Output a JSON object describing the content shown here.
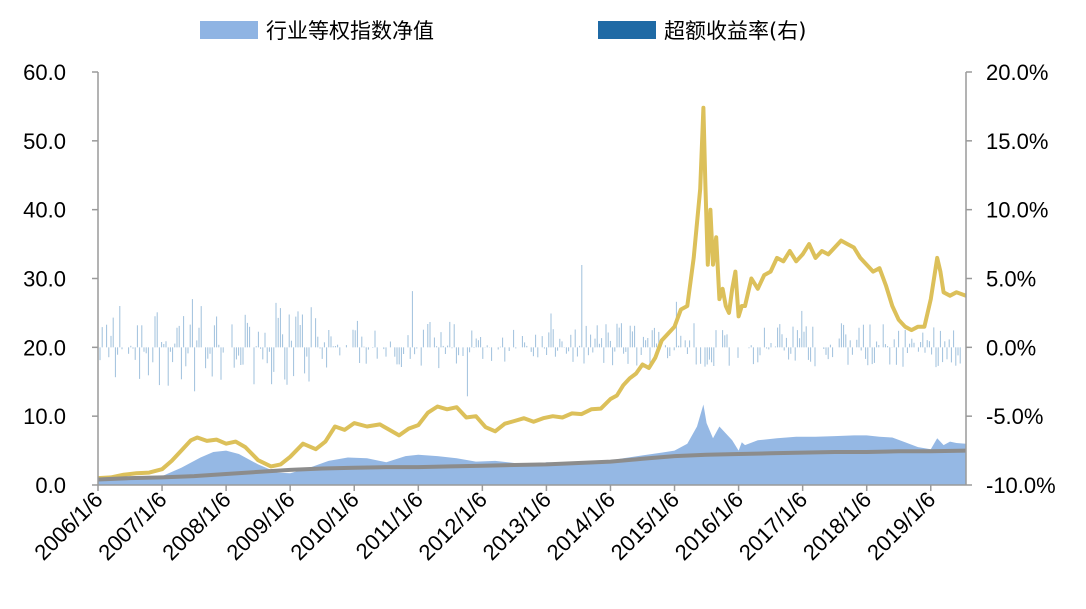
{
  "chart_data": {
    "type": "area",
    "legend": [
      {
        "label": "行业等权指数净值",
        "color": "#8fb4e3",
        "kind": "area"
      },
      {
        "label": "超额收益率(右)",
        "color": "#1f6aa5",
        "kind": "bar"
      }
    ],
    "legend_position": "top",
    "left_axis": {
      "min": 0,
      "max": 60,
      "step": 10,
      "tick_labels": [
        "0.0",
        "10.0",
        "20.0",
        "30.0",
        "40.0",
        "50.0",
        "60.0"
      ]
    },
    "right_axis": {
      "min": -10,
      "max": 20,
      "step": 5,
      "tick_labels": [
        "-10.0%",
        "-5.0%",
        "0.0%",
        "5.0%",
        "10.0%",
        "15.0%",
        "20.0%"
      ]
    },
    "x_tick_labels": [
      "2006/1/6",
      "2007/1/6",
      "2008/1/6",
      "2009/1/6",
      "2010/1/6",
      "2011/1/6",
      "2012/1/6",
      "2013/1/6",
      "2014/1/6",
      "2015/1/6",
      "2016/1/6",
      "2017/1/6",
      "2018/1/6",
      "2019/1/6"
    ],
    "x_range": [
      2006.0,
      2019.55
    ],
    "series": [
      {
        "kind": "area",
        "axis": "left",
        "color": "#8fb4e3",
        "x": [
          2006.0,
          2006.5,
          2007.0,
          2007.3,
          2007.6,
          2007.8,
          2008.0,
          2008.2,
          2008.5,
          2008.8,
          2009.0,
          2009.3,
          2009.6,
          2009.9,
          2010.2,
          2010.5,
          2010.8,
          2011.0,
          2011.3,
          2011.6,
          2011.9,
          2012.2,
          2012.5,
          2012.8,
          2013.0,
          2013.3,
          2013.6,
          2013.9,
          2014.2,
          2014.5,
          2014.8,
          2015.0,
          2015.2,
          2015.35,
          2015.45,
          2015.5,
          2015.6,
          2015.7,
          2015.8,
          2015.9,
          2016.0,
          2016.05,
          2016.1,
          2016.3,
          2016.6,
          2016.9,
          2017.2,
          2017.5,
          2017.8,
          2018.0,
          2018.2,
          2018.4,
          2018.6,
          2018.8,
          2019.0,
          2019.1,
          2019.2,
          2019.3,
          2019.4,
          2019.55
        ],
        "values": [
          0.8,
          1.0,
          1.3,
          2.5,
          4.0,
          4.8,
          5.0,
          4.5,
          3.0,
          1.8,
          1.7,
          2.5,
          3.5,
          4.0,
          3.9,
          3.3,
          4.2,
          4.4,
          4.2,
          3.9,
          3.4,
          3.5,
          3.2,
          3.0,
          3.3,
          3.2,
          3.4,
          3.4,
          3.9,
          4.3,
          4.7,
          5.0,
          6.0,
          8.5,
          11.7,
          9.0,
          6.8,
          8.5,
          7.5,
          6.5,
          5.0,
          6.2,
          5.8,
          6.5,
          6.8,
          7.0,
          7.0,
          7.1,
          7.2,
          7.2,
          7.0,
          6.9,
          6.2,
          5.5,
          5.2,
          6.8,
          5.8,
          6.3,
          6.1,
          6.0
        ]
      },
      {
        "kind": "line",
        "axis": "left",
        "color": "#dcc05a",
        "x": [
          2006.0,
          2006.2,
          2006.4,
          2006.6,
          2006.8,
          2007.0,
          2007.15,
          2007.3,
          2007.45,
          2007.55,
          2007.7,
          2007.85,
          2008.0,
          2008.15,
          2008.3,
          2008.5,
          2008.7,
          2008.85,
          2009.0,
          2009.2,
          2009.4,
          2009.55,
          2009.7,
          2009.85,
          2010.0,
          2010.2,
          2010.4,
          2010.55,
          2010.7,
          2010.85,
          2011.0,
          2011.15,
          2011.3,
          2011.45,
          2011.6,
          2011.75,
          2011.9,
          2012.05,
          2012.2,
          2012.35,
          2012.5,
          2012.65,
          2012.8,
          2012.95,
          2013.1,
          2013.25,
          2013.4,
          2013.55,
          2013.7,
          2013.85,
          2014.0,
          2014.1,
          2014.2,
          2014.3,
          2014.4,
          2014.5,
          2014.6,
          2014.7,
          2014.8,
          2014.9,
          2015.0,
          2015.1,
          2015.2,
          2015.3,
          2015.4,
          2015.45,
          2015.48,
          2015.52,
          2015.56,
          2015.6,
          2015.65,
          2015.7,
          2015.75,
          2015.8,
          2015.85,
          2015.9,
          2015.95,
          2016.0,
          2016.05,
          2016.1,
          2016.2,
          2016.3,
          2016.4,
          2016.5,
          2016.6,
          2016.7,
          2016.8,
          2016.9,
          2017.0,
          2017.1,
          2017.2,
          2017.3,
          2017.4,
          2017.5,
          2017.6,
          2017.7,
          2017.8,
          2017.9,
          2018.0,
          2018.1,
          2018.2,
          2018.3,
          2018.4,
          2018.5,
          2018.6,
          2018.7,
          2018.8,
          2018.9,
          2019.0,
          2019.1,
          2019.15,
          2019.2,
          2019.3,
          2019.4,
          2019.55
        ],
        "values": [
          1.0,
          1.1,
          1.5,
          1.7,
          1.8,
          2.3,
          3.5,
          5.0,
          6.5,
          6.9,
          6.4,
          6.6,
          6.0,
          6.3,
          5.5,
          3.6,
          2.7,
          3.0,
          4.1,
          6.0,
          5.2,
          6.3,
          8.5,
          8.0,
          9.0,
          8.5,
          8.8,
          8.0,
          7.2,
          8.2,
          8.7,
          10.5,
          11.4,
          11.0,
          11.3,
          9.8,
          10.0,
          8.4,
          7.8,
          8.9,
          9.3,
          9.7,
          9.2,
          9.7,
          10.0,
          9.8,
          10.4,
          10.3,
          11.0,
          11.1,
          12.5,
          13.0,
          14.5,
          15.5,
          16.2,
          17.5,
          17.0,
          18.5,
          21.0,
          22.0,
          23.0,
          25.5,
          26.0,
          33.0,
          43.0,
          54.8,
          44.0,
          32.0,
          40.0,
          32.0,
          36.0,
          27.0,
          28.5,
          26.0,
          25.0,
          28.5,
          31.0,
          24.5,
          26.0,
          26.0,
          30.0,
          28.5,
          30.5,
          31.0,
          33.0,
          32.5,
          34.0,
          32.5,
          33.5,
          35.0,
          33.0,
          34.0,
          33.5,
          34.5,
          35.5,
          35.0,
          34.5,
          33.0,
          32.0,
          31.0,
          31.5,
          29.0,
          26.0,
          24.0,
          23.0,
          22.5,
          23.0,
          23.0,
          27.0,
          33.0,
          31.0,
          28.0,
          27.5,
          28.0,
          27.5
        ]
      },
      {
        "kind": "line",
        "axis": "left",
        "color": "#8c8c8c",
        "x": [
          2006.0,
          2006.5,
          2007.0,
          2007.5,
          2008.0,
          2008.5,
          2009.0,
          2009.5,
          2010.0,
          2010.5,
          2011.0,
          2011.5,
          2012.0,
          2012.5,
          2013.0,
          2013.5,
          2014.0,
          2014.5,
          2015.0,
          2015.5,
          2016.0,
          2016.5,
          2017.0,
          2017.5,
          2018.0,
          2018.5,
          2019.0,
          2019.55
        ],
        "values": [
          0.8,
          1.0,
          1.1,
          1.3,
          1.6,
          1.9,
          2.2,
          2.4,
          2.5,
          2.6,
          2.6,
          2.7,
          2.8,
          2.9,
          3.0,
          3.2,
          3.4,
          3.8,
          4.2,
          4.4,
          4.5,
          4.6,
          4.7,
          4.8,
          4.8,
          4.9,
          4.9,
          5.0
        ]
      }
    ]
  }
}
